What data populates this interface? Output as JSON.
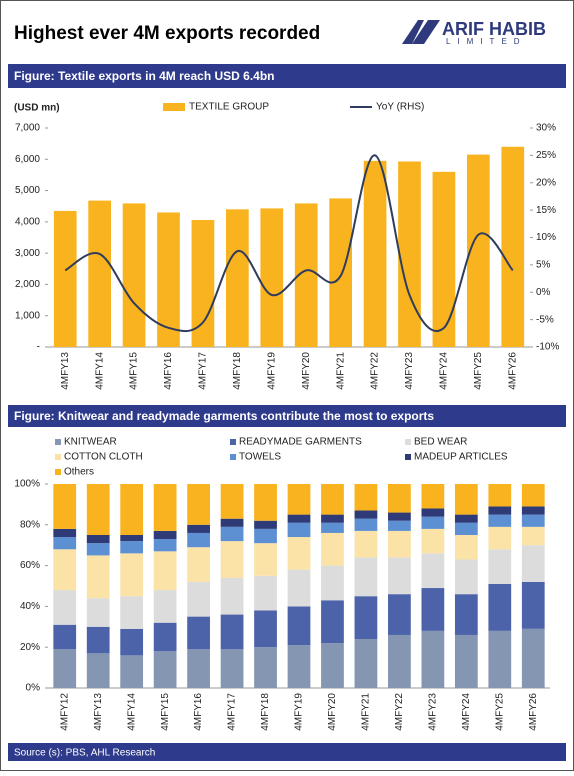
{
  "header": {
    "title": "Highest ever 4M exports recorded",
    "logo_name": "ARIF HABIB",
    "logo_sub": "LIMITED"
  },
  "chart_data": [
    {
      "type": "bar",
      "title": "Figure: Textile exports in 4M reach USD 6.4bn",
      "y_label": "(USD mn)",
      "categories": [
        "4MFY13",
        "4MFY14",
        "4MFY15",
        "4MFY16",
        "4MFY17",
        "4MFY18",
        "4MFY19",
        "4MFY20",
        "4MFY21",
        "4MFY22",
        "4MFY23",
        "4MFY24",
        "4MFY25",
        "4MFY26"
      ],
      "series": [
        {
          "name": "TEXTILE GROUP",
          "color": "#f8b31f",
          "values": [
            4350,
            4680,
            4590,
            4300,
            4060,
            4400,
            4430,
            4590,
            4750,
            5950,
            5930,
            5600,
            6150,
            6400
          ]
        },
        {
          "name": "YoY (RHS)",
          "color": "#2f3c5e",
          "type": "line",
          "axis": "y2",
          "values": [
            4,
            7,
            -2,
            -6.5,
            -5.5,
            7.5,
            -0.5,
            4,
            3,
            25,
            -0.5,
            -6.5,
            10.5,
            4
          ]
        }
      ],
      "ylim": [
        0,
        7000
      ],
      "yticks": [
        {
          "value": 0,
          "label": "-"
        },
        {
          "value": 1000,
          "label": "1,000"
        },
        {
          "value": 2000,
          "label": "2,000"
        },
        {
          "value": 3000,
          "label": "3,000"
        },
        {
          "value": 4000,
          "label": "4,000"
        },
        {
          "value": 5000,
          "label": "5,000"
        },
        {
          "value": 6000,
          "label": "6,000"
        },
        {
          "value": 7000,
          "label": "7,000"
        }
      ],
      "y2lim": [
        -10,
        30
      ],
      "y2ticks": [
        {
          "value": -10,
          "label": "-10%"
        },
        {
          "value": -5,
          "label": "-5%"
        },
        {
          "value": 0,
          "label": "0%"
        },
        {
          "value": 5,
          "label": "5%"
        },
        {
          "value": 10,
          "label": "10%"
        },
        {
          "value": 15,
          "label": "15%"
        },
        {
          "value": 20,
          "label": "20%"
        },
        {
          "value": 25,
          "label": "25%"
        },
        {
          "value": 30,
          "label": "30%"
        }
      ]
    },
    {
      "type": "stacked_bar",
      "title": "Figure: Knitwear and readymade garments contribute the most to exports",
      "categories": [
        "4MFY12",
        "4MFY13",
        "4MFY14",
        "4MFY15",
        "4MFY16",
        "4MFY17",
        "4MFY18",
        "4MFY19",
        "4MFY20",
        "4MFY21",
        "4MFY22",
        "4MFY23",
        "4MFY24",
        "4MFY25",
        "4MFY26"
      ],
      "series": [
        {
          "name": "KNITWEAR",
          "color": "#8496b2",
          "values": [
            19,
            17,
            16,
            18,
            19,
            19,
            20,
            21,
            22,
            24,
            26,
            28,
            26,
            28,
            29
          ]
        },
        {
          "name": "READYMADE GARMENTS",
          "color": "#4c63a9",
          "values": [
            12,
            13,
            13,
            14,
            16,
            17,
            18,
            19,
            21,
            21,
            20,
            21,
            20,
            23,
            23
          ]
        },
        {
          "name": "BED WEAR",
          "color": "#dcdcdc",
          "values": [
            17,
            14,
            16,
            16,
            17,
            18,
            17,
            18,
            17,
            19,
            18,
            17,
            17,
            17,
            18
          ]
        },
        {
          "name": "COTTON CLOTH",
          "color": "#fbe2a6",
          "values": [
            20,
            21,
            21,
            19,
            17,
            18,
            16,
            16,
            16,
            13,
            13,
            12,
            12,
            11,
            9
          ]
        },
        {
          "name": "TOWELS",
          "color": "#5d90d2",
          "values": [
            6,
            6,
            6,
            6,
            7,
            7,
            7,
            7,
            5,
            6,
            5,
            6,
            6,
            6,
            6
          ]
        },
        {
          "name": "MADEUP ARTICLES",
          "color": "#2f3b76",
          "values": [
            4,
            4,
            3,
            4,
            4,
            4,
            4,
            4,
            4,
            4,
            4,
            4,
            4,
            4,
            4
          ]
        },
        {
          "name": "Others",
          "color": "#f8b31f",
          "values": [
            22,
            25,
            25,
            23,
            20,
            17,
            18,
            15,
            15,
            13,
            14,
            12,
            15,
            11,
            11
          ]
        }
      ],
      "ylim": [
        0,
        100
      ],
      "yticks": [
        {
          "value": 0,
          "label": "0%"
        },
        {
          "value": 20,
          "label": "20%"
        },
        {
          "value": 40,
          "label": "40%"
        },
        {
          "value": 60,
          "label": "60%"
        },
        {
          "value": 80,
          "label": "80%"
        },
        {
          "value": 100,
          "label": "100%"
        }
      ]
    }
  ],
  "source": "Source (s): PBS, AHL Research"
}
